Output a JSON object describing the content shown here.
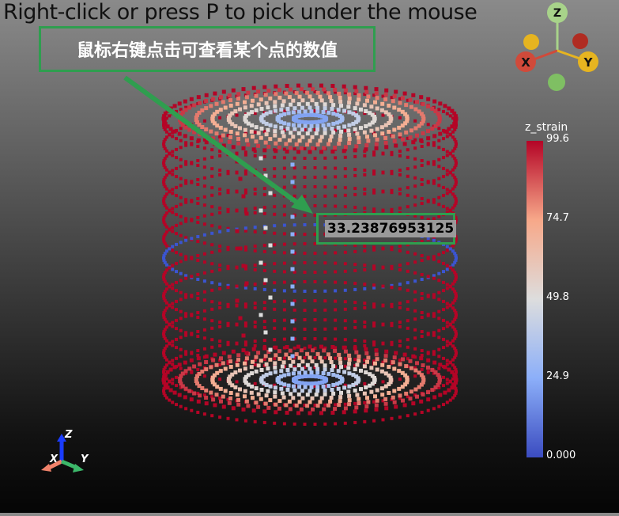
{
  "hint_text": "Right-click or press P to pick under the mouse",
  "annotation_text": "鼠标右键点击可查看某个点的数值",
  "picked_value": "33.23876953125",
  "scalar_bar": {
    "title": "z_strain",
    "ticks": [
      "99.6",
      "74.7",
      "49.8",
      "24.9",
      "0.000"
    ],
    "colors": [
      "#b40426",
      "#f7a889",
      "#dddddd",
      "#8caff9",
      "#3b4cc0"
    ]
  },
  "orientation_widget": {
    "z_label": "Z",
    "x_label": "X",
    "y_label": "Y",
    "z_color": "#a8d38a",
    "x_color": "#d04a3a",
    "y_color": "#e6b420"
  },
  "small_axes": {
    "z_label": "Z",
    "x_label": "X",
    "y_label": "Y"
  },
  "accent_color": "#2f9e4f"
}
